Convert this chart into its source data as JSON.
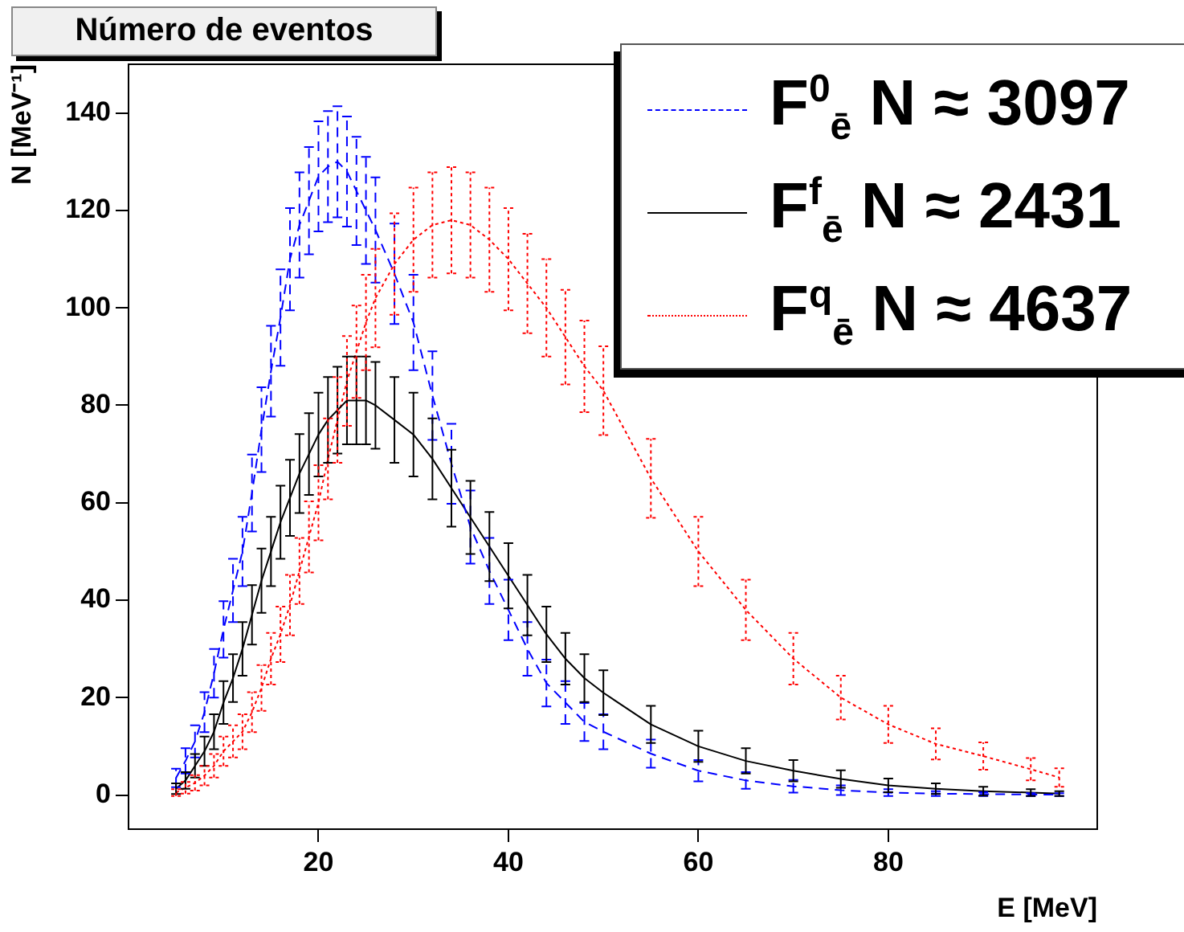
{
  "chart_data": {
    "type": "line",
    "title": "Número de eventos",
    "xlabel": "E [MeV]",
    "ylabel": "N [MeV⁻¹]",
    "x": [
      5,
      6,
      7,
      8,
      9,
      10,
      11,
      12,
      13,
      14,
      15,
      16,
      17,
      18,
      19,
      20,
      21,
      22,
      23,
      24,
      25,
      26,
      28,
      30,
      32,
      34,
      36,
      38,
      40,
      42,
      44,
      46,
      48,
      50,
      55,
      60,
      65,
      70,
      75,
      80,
      85,
      90,
      95,
      98
    ],
    "series": [
      {
        "name": "F$^{0}$$_{ē}$  N ≈ 3097",
        "color": "#0000ff",
        "line_style": "dashed",
        "values": [
          3.5,
          7,
          11,
          17,
          25,
          34,
          42,
          50,
          62,
          75,
          87,
          98,
          110,
          117,
          122,
          127,
          129,
          130,
          128,
          124,
          120,
          116,
          107,
          97,
          82,
          68,
          55,
          46,
          38,
          30,
          23,
          19,
          15,
          13,
          8.5,
          5,
          3,
          1.8,
          1,
          0.5,
          0.3,
          0.2,
          0.1,
          0.1
        ],
        "errors": [
          1.9,
          2.6,
          3.3,
          4.1,
          5,
          5.8,
          6.5,
          7.1,
          7.9,
          8.7,
          9.3,
          9.9,
          10.5,
          10.8,
          11,
          11.3,
          11.4,
          11.4,
          11.3,
          11.1,
          11,
          10.8,
          10.3,
          9.8,
          9.1,
          8.2,
          7.5,
          6.8,
          6.2,
          5.5,
          4.8,
          4.4,
          3.9,
          3.6,
          2.9,
          2.2,
          1.7,
          1.3,
          1,
          0.7,
          0.5,
          0.4,
          0.3,
          0.3
        ]
      },
      {
        "name": "F$^{f}$$_{ē}$  N ≈ 2431",
        "color": "#000000",
        "line_style": "solid",
        "values": [
          1.3,
          3,
          6,
          9,
          13,
          19,
          24,
          30,
          37,
          44,
          50,
          56,
          61,
          66,
          70,
          74,
          77,
          79,
          81,
          81,
          81,
          80,
          77,
          74,
          69,
          63,
          57,
          51,
          45,
          39,
          33,
          28,
          24,
          21,
          14.5,
          10,
          7,
          5,
          3.3,
          2,
          1.3,
          0.8,
          0.5,
          0.3
        ],
        "errors": [
          1.1,
          1.7,
          2.4,
          3,
          3.6,
          4.4,
          4.9,
          5.5,
          6.1,
          6.6,
          7.1,
          7.5,
          7.8,
          8.1,
          8.4,
          8.6,
          8.8,
          8.9,
          9,
          9,
          9,
          8.9,
          8.8,
          8.6,
          8.3,
          7.9,
          7.5,
          7.1,
          6.7,
          6.2,
          5.7,
          5.3,
          4.9,
          4.6,
          3.8,
          3.2,
          2.6,
          2.2,
          1.8,
          1.4,
          1.1,
          0.9,
          0.7,
          0.5
        ]
      },
      {
        "name": "F$^{q}$$_{ē}$  N ≈ 4637",
        "color": "#ff0000",
        "line_style": "dotted",
        "values": [
          0.5,
          1.5,
          2.5,
          4,
          6,
          9,
          11,
          13,
          17,
          22,
          28,
          33,
          39,
          46,
          53,
          60,
          69,
          77,
          85,
          91,
          97,
          102,
          109,
          114,
          117,
          118,
          117,
          114,
          110,
          105,
          100,
          94,
          88,
          83,
          65,
          50,
          38,
          28,
          20,
          14.5,
          10.5,
          8,
          5.3,
          3.6
        ],
        "errors": [
          0.7,
          1.2,
          1.6,
          2,
          2.4,
          3,
          3.3,
          3.6,
          4.1,
          4.7,
          5.3,
          5.7,
          6.2,
          6.8,
          7.3,
          7.7,
          8.3,
          8.8,
          9.2,
          9.5,
          9.8,
          10.1,
          10.4,
          10.7,
          10.8,
          10.9,
          10.8,
          10.7,
          10.5,
          10.2,
          10,
          9.7,
          9.4,
          9.1,
          8.1,
          7.1,
          6.2,
          5.3,
          4.5,
          3.8,
          3.2,
          2.8,
          2.3,
          1.9
        ]
      }
    ],
    "xlim": [
      0,
      102
    ],
    "xticks": [
      20,
      40,
      60,
      80
    ],
    "ylim": [
      -7,
      150
    ],
    "yticks": [
      0,
      20,
      40,
      60,
      80,
      100,
      120,
      140
    ],
    "marker": "none",
    "grid": false,
    "legend": "top right"
  }
}
